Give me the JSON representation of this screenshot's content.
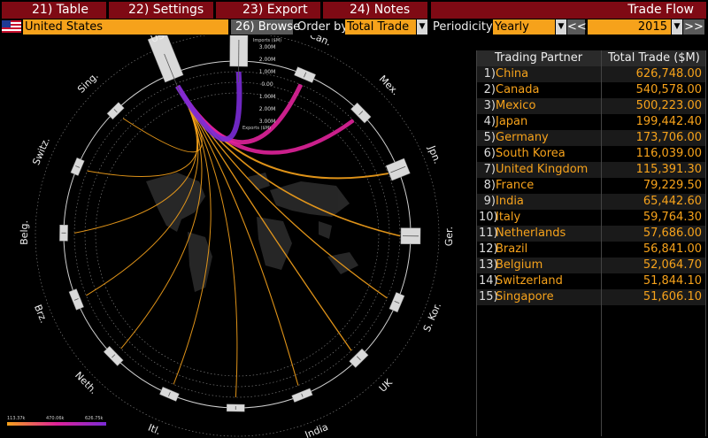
{
  "toolbar": {
    "table": "21) Table",
    "settings": "22) Settings",
    "export": "23) Export",
    "notes": "24) Notes",
    "title": "Trade Flow"
  },
  "controls": {
    "country": "United States",
    "browse": "26) Browse",
    "order_by_label": "Order by",
    "order_by_value": "Total Trade",
    "periodicity_label": "Periodicity",
    "periodicity_value": "Yearly",
    "prev": "<<",
    "year": "2015",
    "next": ">>"
  },
  "table": {
    "col_partner": "Trading Partner",
    "col_total": "Total Trade ($M)",
    "rows": [
      {
        "rank": "1)",
        "name": "China",
        "value": "626,748.00"
      },
      {
        "rank": "2)",
        "name": "Canada",
        "value": "540,578.00"
      },
      {
        "rank": "3)",
        "name": "Mexico",
        "value": "500,223.00"
      },
      {
        "rank": "4)",
        "name": "Japan",
        "value": "199,442.40"
      },
      {
        "rank": "5)",
        "name": "Germany",
        "value": "173,706.00"
      },
      {
        "rank": "6)",
        "name": "South Korea",
        "value": "116,039.00"
      },
      {
        "rank": "7)",
        "name": "United Kingdom",
        "value": "115,391.30"
      },
      {
        "rank": "8)",
        "name": "France",
        "value": "79,229.50"
      },
      {
        "rank": "9)",
        "name": "India",
        "value": "65,442.60"
      },
      {
        "rank": "10)",
        "name": "Italy",
        "value": "59,764.30"
      },
      {
        "rank": "11)",
        "name": "Netherlands",
        "value": "57,686.00"
      },
      {
        "rank": "12)",
        "name": "Brazil",
        "value": "56,841.00"
      },
      {
        "rank": "13)",
        "name": "Belgium",
        "value": "52,064.70"
      },
      {
        "rank": "14)",
        "name": "Switzerland",
        "value": "51,844.10"
      },
      {
        "rank": "15)",
        "name": "Singapore",
        "value": "51,606.10"
      }
    ]
  },
  "diagram": {
    "labels": [
      "US",
      "China",
      "Can.",
      "Mex.",
      "Jpn.",
      "Ger.",
      "S. Kor.",
      "UK",
      "India",
      "Fr.",
      "Itl.",
      "Neth.",
      "Brz.",
      "Belg.",
      "Switz.",
      "Sing."
    ],
    "scale_imports_title": "Imports ($M)",
    "scale_exports_title": "Exports ($M)",
    "scale_ticks": [
      "3.00M",
      "2.00M",
      "1.00M",
      "0.00",
      "1.00M",
      "2.00M",
      "3.00M"
    ],
    "legend": [
      "113.37k",
      "470.06k",
      "626.75k"
    ],
    "colors": {
      "low": "#f6a21b",
      "mid": "#e0229a",
      "high": "#7a2bd6"
    }
  }
}
